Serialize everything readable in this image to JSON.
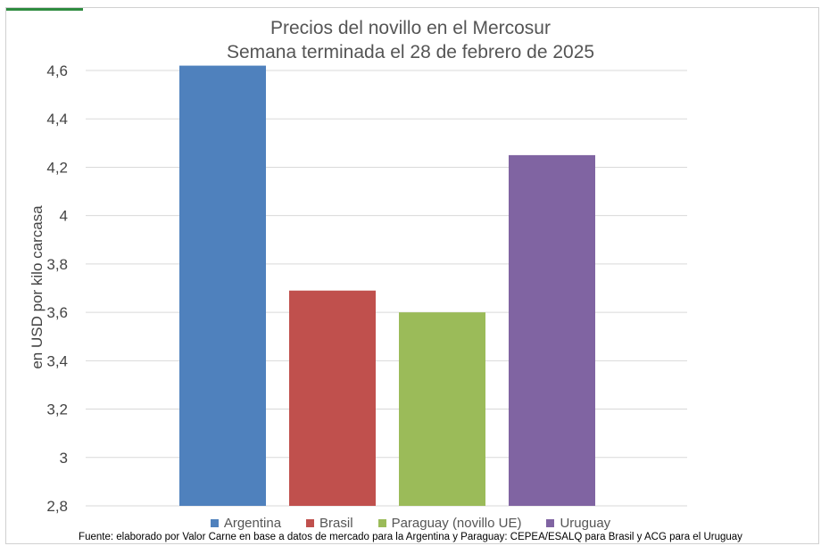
{
  "chart_data": {
    "type": "bar",
    "title": [
      "Precios del novillo en el Mercosur",
      "Semana terminada el 28 de febrero de 2025"
    ],
    "ylabel": "en USD por kilo carcasa",
    "ylim": [
      2.8,
      4.6
    ],
    "yticks": [
      "2,8",
      "3",
      "3,2",
      "3,4",
      "3,6",
      "3,8",
      "4",
      "4,2",
      "4,4",
      "4,6"
    ],
    "ytick_values": [
      2.8,
      3.0,
      3.2,
      3.4,
      3.6,
      3.8,
      4.0,
      4.2,
      4.4,
      4.6
    ],
    "grid": true,
    "legend_position": "bottom",
    "series": [
      {
        "name": "Argentina",
        "value": 4.62,
        "color": "#4f81bd"
      },
      {
        "name": "Brasil",
        "value": 3.69,
        "color": "#c0504d"
      },
      {
        "name": "Paraguay (novillo UE)",
        "value": 3.6,
        "color": "#9bbb59"
      },
      {
        "name": "Uruguay",
        "value": 4.25,
        "color": "#8064a2"
      }
    ],
    "source": "Fuente: elaborado por Valor Carne en base a datos de mercado para la Argentina y Paraguay: CEPEA/ESALQ para Brasil y ACG para el Uruguay"
  }
}
